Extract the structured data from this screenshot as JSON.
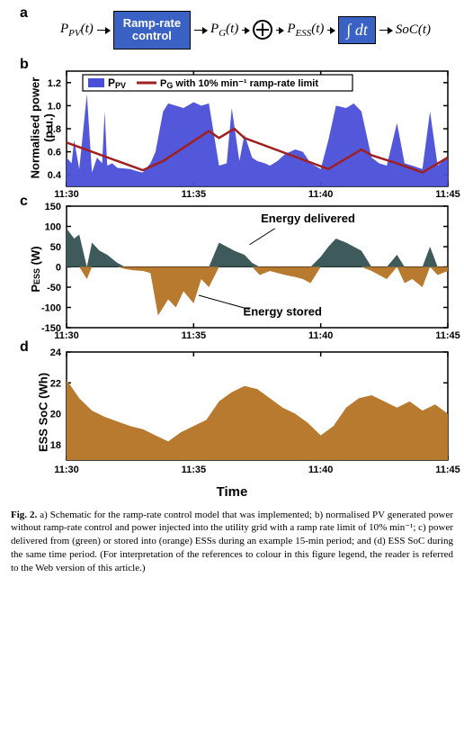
{
  "panel_a": {
    "label": "a",
    "p_pv": "P",
    "p_pv_sub": "PV",
    "p_g": "P",
    "p_g_sub": "G",
    "p_ess": "P",
    "p_ess_sub": "ESS",
    "t_arg": "(t)",
    "ramp_box": "Ramp-rate\ncontrol",
    "integral": "∫ dt",
    "soc": "SoC(t)",
    "sum_plus": "+",
    "sum_minus": "−",
    "box_color": "#3a62c4",
    "arrow_color": "#000000"
  },
  "panel_b": {
    "label": "b",
    "ylabel": "Normalised power\n(p.u.)",
    "legend_ppv": "P",
    "legend_ppv_sub": "PV",
    "legend_pg": "P",
    "legend_pg_sub": "G",
    "legend_pg_suffix": " with 10% min⁻¹ ramp-rate limit",
    "ppv_color": "#4a4fd8",
    "pg_color": "#a02020",
    "grid_color": "#000000",
    "background": "#ffffff",
    "xlim": [
      "11:30",
      "11:45"
    ],
    "xticks": [
      "11:30",
      "11:35",
      "11:40",
      "11:45"
    ],
    "ylim": [
      0.3,
      1.3
    ],
    "yticks": [
      0.4,
      0.6,
      0.8,
      1.0,
      1.2
    ],
    "tick_fontsize": 11,
    "label_fontsize": 13,
    "ppv_series": {
      "x": [
        0,
        0.2,
        0.3,
        0.5,
        0.8,
        1.0,
        1.2,
        1.4,
        1.5,
        1.6,
        1.8,
        2.0,
        2.5,
        2.8,
        3.0,
        3.3,
        3.5,
        3.8,
        4.0,
        4.3,
        4.6,
        5.0,
        5.3,
        5.6,
        6.0,
        6.3,
        6.5,
        6.8,
        7.0,
        7.3,
        7.5,
        7.8,
        8.0,
        8.3,
        8.6,
        9.0,
        9.3,
        9.6,
        10.0,
        10.3,
        10.6,
        11.0,
        11.3,
        11.6,
        12.0,
        12.3,
        12.6,
        13.0,
        13.3,
        13.6,
        14.0,
        14.3,
        14.6,
        15.0
      ],
      "y": [
        0.55,
        0.5,
        0.7,
        0.45,
        1.1,
        0.42,
        0.55,
        0.5,
        0.95,
        0.48,
        0.5,
        0.46,
        0.45,
        0.43,
        0.42,
        0.5,
        0.6,
        0.95,
        1.02,
        1.0,
        0.98,
        1.03,
        1.0,
        1.02,
        0.48,
        0.5,
        0.98,
        0.52,
        0.75,
        0.55,
        0.52,
        0.5,
        0.48,
        0.52,
        0.58,
        0.62,
        0.6,
        0.5,
        0.45,
        0.7,
        1.0,
        0.98,
        1.02,
        0.95,
        0.55,
        0.5,
        0.48,
        0.85,
        0.5,
        0.48,
        0.45,
        0.95,
        0.48,
        0.55
      ]
    },
    "pg_series": {
      "x": [
        0,
        1.0,
        2.0,
        3.0,
        3.8,
        5.6,
        6.0,
        6.6,
        7.0,
        10.3,
        11.6,
        12.0,
        13.0,
        14.0,
        15.0
      ],
      "y": [
        0.68,
        0.6,
        0.52,
        0.44,
        0.52,
        0.78,
        0.72,
        0.8,
        0.72,
        0.45,
        0.62,
        0.57,
        0.5,
        0.42,
        0.55
      ]
    }
  },
  "panel_c": {
    "label": "c",
    "ylabel": "Pᴇss (W)",
    "energy_delivered_label": "Energy delivered",
    "energy_stored_label": "Energy stored",
    "delivered_color": "#3f5a5a",
    "stored_color": "#b87a2e",
    "axis_color": "#000000",
    "background": "#ffffff",
    "xlim": [
      "11:30",
      "11:45"
    ],
    "xticks": [
      "11:30",
      "11:35",
      "11:40",
      "11:45"
    ],
    "ylim": [
      -150,
      150
    ],
    "yticks": [
      -150,
      -100,
      -50,
      0,
      50,
      100,
      150
    ],
    "tick_fontsize": 11,
    "label_fontsize": 13,
    "series": {
      "x": [
        0,
        0.3,
        0.5,
        0.8,
        1.0,
        1.3,
        1.6,
        2.0,
        2.3,
        2.6,
        3.0,
        3.3,
        3.6,
        4.0,
        4.3,
        4.6,
        5.0,
        5.3,
        5.6,
        6.0,
        6.3,
        6.6,
        7.0,
        7.3,
        7.6,
        8.0,
        8.3,
        8.6,
        9.0,
        9.3,
        9.6,
        10.0,
        10.3,
        10.6,
        11.0,
        11.3,
        11.6,
        12.0,
        12.3,
        12.6,
        13.0,
        13.3,
        13.6,
        14.0,
        14.3,
        14.6,
        15.0
      ],
      "y": [
        95,
        70,
        80,
        -30,
        60,
        40,
        30,
        10,
        -5,
        -8,
        -10,
        -15,
        -120,
        -80,
        -100,
        -60,
        -90,
        -30,
        -50,
        60,
        50,
        40,
        30,
        10,
        -20,
        -10,
        -15,
        -20,
        -25,
        -30,
        -40,
        25,
        50,
        70,
        60,
        50,
        40,
        -10,
        -20,
        -30,
        30,
        -40,
        -30,
        -50,
        50,
        -20,
        -10
      ]
    }
  },
  "panel_d": {
    "label": "d",
    "ylabel": "ESS SoC (Wh)",
    "fill_color": "#b87a2e",
    "axis_color": "#000000",
    "background": "#ffffff",
    "xlim": [
      "11:30",
      "11:45"
    ],
    "xticks": [
      "11:30",
      "11:35",
      "11:40",
      "11:45"
    ],
    "ylim": [
      17,
      24
    ],
    "yticks": [
      18,
      20,
      22,
      24
    ],
    "tick_fontsize": 11,
    "label_fontsize": 13,
    "series": {
      "x": [
        0,
        0.5,
        1.0,
        1.5,
        2.0,
        2.5,
        3.0,
        3.5,
        4.0,
        4.5,
        5.0,
        5.5,
        6.0,
        6.5,
        7.0,
        7.5,
        8.0,
        8.5,
        9.0,
        9.5,
        10.0,
        10.5,
        11.0,
        11.5,
        12.0,
        12.5,
        13.0,
        13.5,
        14.0,
        14.5,
        15.0
      ],
      "y": [
        22.2,
        21.0,
        20.2,
        19.8,
        19.5,
        19.2,
        19.0,
        18.6,
        18.2,
        18.8,
        19.2,
        19.6,
        20.8,
        21.4,
        21.8,
        21.6,
        21.0,
        20.4,
        20.0,
        19.4,
        18.6,
        19.2,
        20.4,
        21.0,
        21.2,
        20.8,
        20.4,
        20.8,
        20.2,
        20.6,
        20.0
      ]
    }
  },
  "xlabel": "Time",
  "caption": {
    "prefix": "Fig. 2.",
    "text": " a) Schematic for the ramp-rate control model that was implemented; b) normalised PV generated power without ramp-rate control and power injected into the utility grid with a ramp rate limit of 10% min⁻¹; c) power delivered from (green) or stored into (orange) ESSs during an example 15-min period; and (d) ESS SoC during the same time period. (For interpretation of the references to colour in this figure legend, the reader is referred to the Web version of this article.)"
  }
}
